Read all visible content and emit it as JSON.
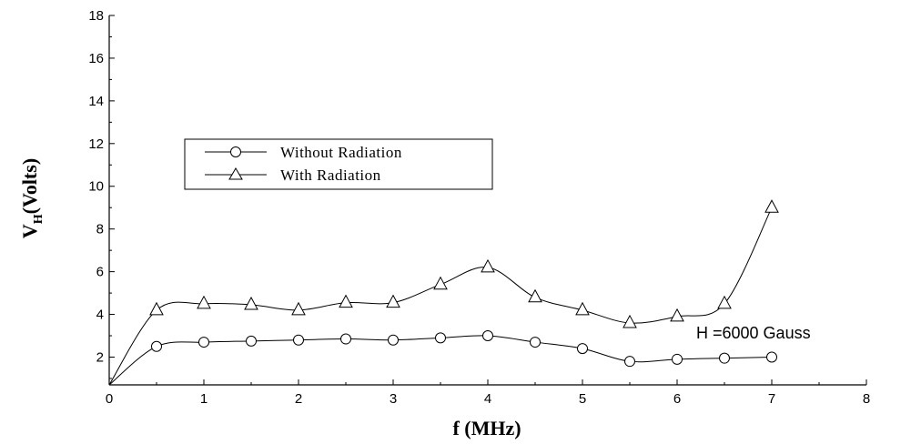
{
  "chart_data": {
    "type": "line",
    "title": "",
    "xlabel": "f (MHz)",
    "ylabel_main": "V",
    "ylabel_sub": "H",
    "ylabel_rest": "(Volts)",
    "xlim": [
      0,
      8
    ],
    "ylim": [
      0.7,
      18
    ],
    "xticks": [
      0,
      1,
      2,
      3,
      4,
      5,
      6,
      7,
      8
    ],
    "yticks": [
      2,
      4,
      6,
      8,
      10,
      12,
      14,
      16,
      18
    ],
    "grid": false,
    "legend_placement": "upper-left",
    "annotation": "H =6000 Gauss",
    "series": [
      {
        "name": "Without Radiation",
        "marker": "circle",
        "x": [
          0,
          0.5,
          1,
          1.5,
          2,
          2.5,
          3,
          3.5,
          4,
          4.5,
          5,
          5.5,
          6,
          6.5,
          7
        ],
        "y": [
          0.7,
          2.5,
          2.7,
          2.75,
          2.8,
          2.85,
          2.8,
          2.9,
          3.0,
          2.7,
          2.4,
          1.8,
          1.9,
          1.95,
          2.0
        ],
        "markers_from_index": 1
      },
      {
        "name": "With Radiation",
        "marker": "triangle",
        "x": [
          0,
          0.5,
          1,
          1.5,
          2,
          2.5,
          3,
          3.5,
          4,
          4.5,
          5,
          5.5,
          6,
          6.5,
          7
        ],
        "y": [
          0.7,
          4.2,
          4.5,
          4.45,
          4.2,
          4.55,
          4.55,
          5.4,
          6.2,
          4.8,
          4.2,
          3.6,
          3.9,
          4.5,
          9.0
        ],
        "markers_from_index": 1
      }
    ]
  }
}
